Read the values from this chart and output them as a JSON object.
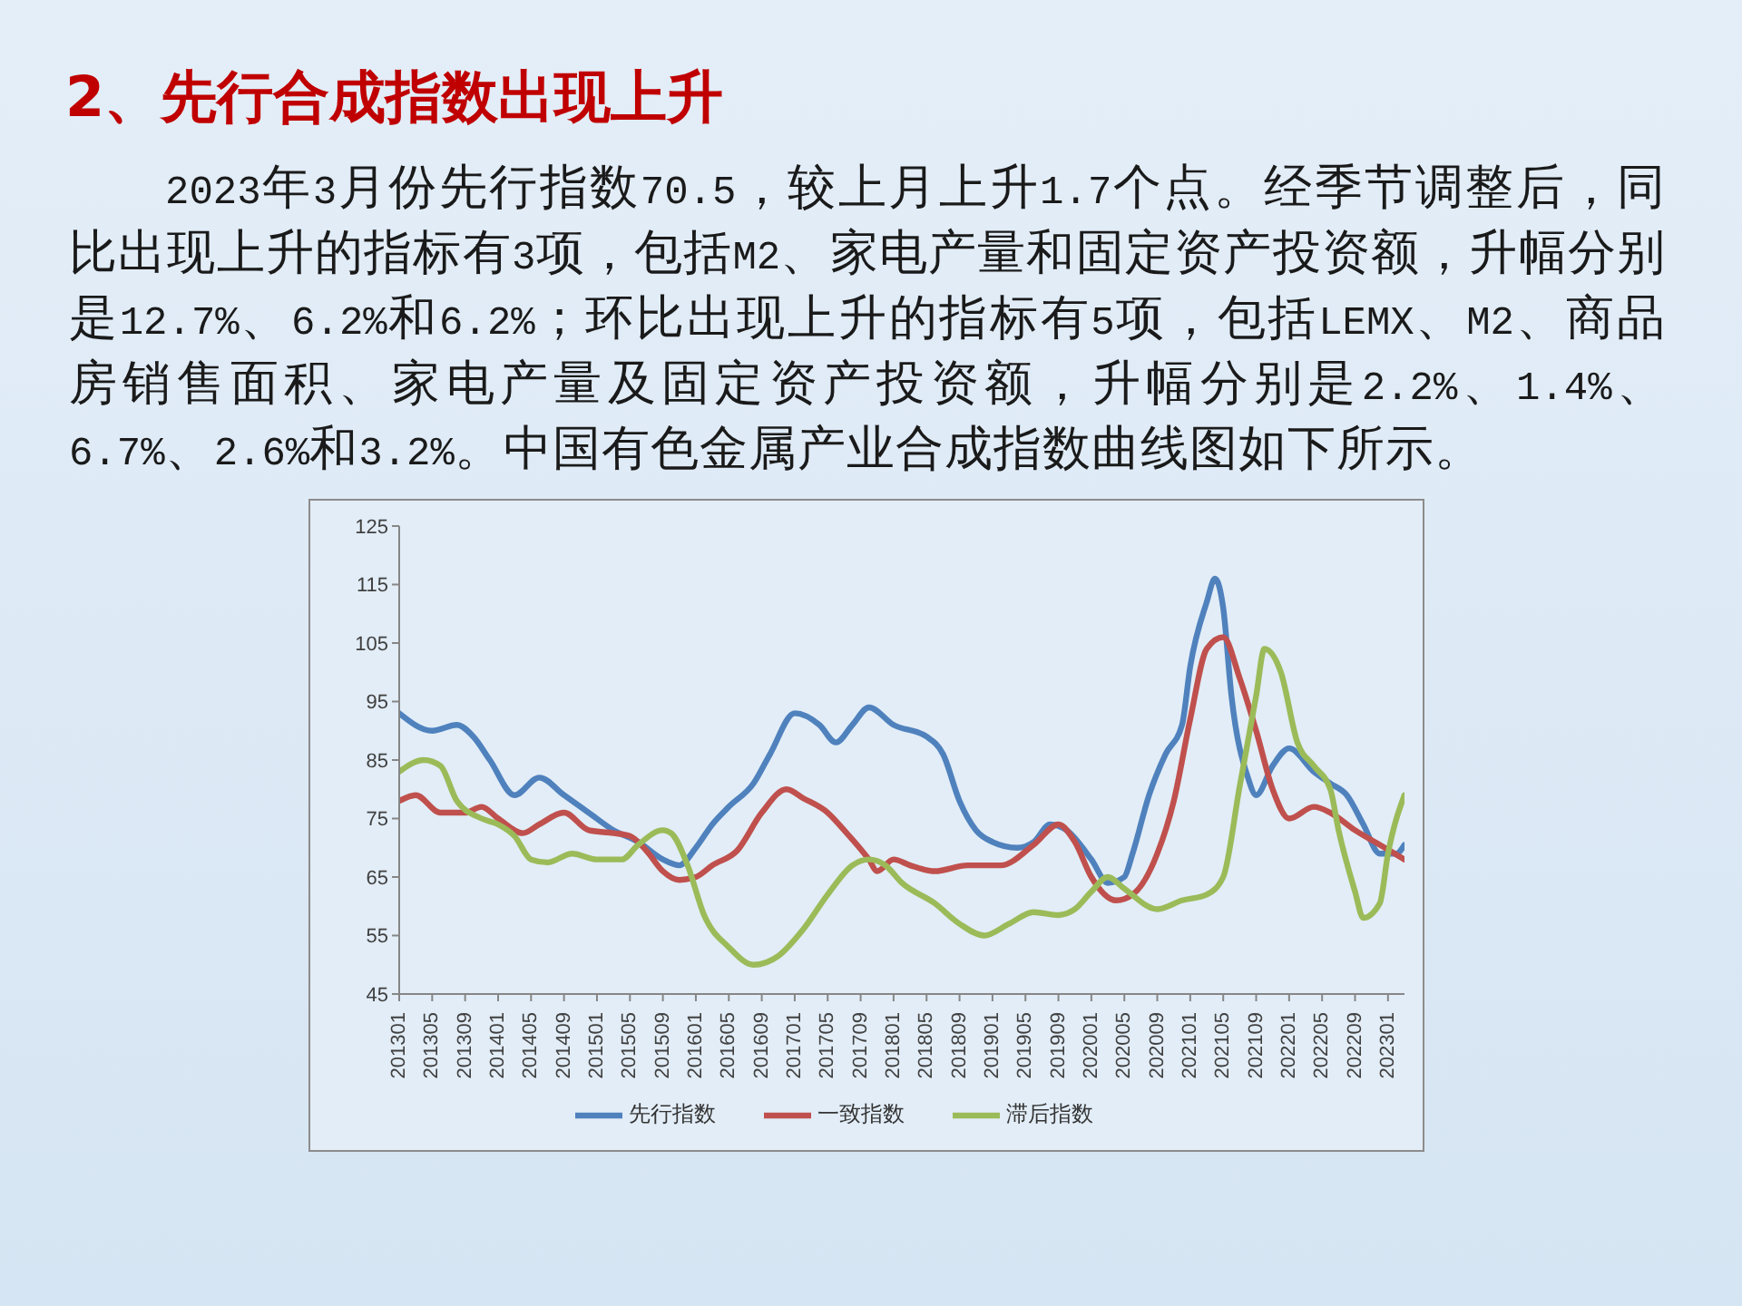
{
  "chart_data": {
    "type": "line",
    "title": "2、先行合成指数出现上升",
    "subtitle": "2023年3月份先行指数70.5，较上月上升1.7个点。经季节调整后，同比出现上升的指标有3项，包括M2、家电产量和固定资产投资额，升幅分别是12.7%、6.2%和6.2%；环比出现上升的指标有5项，包括LEMX、M2、商品房销售面积、家电产量及固定资产投资额，升幅分别是2.2%、1.4%、6.7%、2.6%和3.2%。中国有色金属产业合成指数曲线图如下所示。",
    "xlim": [
      "2013-01",
      "2023-03"
    ],
    "xticks": [
      {
        "value": "2013-01",
        "label": "201301"
      },
      {
        "value": "2013-05",
        "label": "201305"
      },
      {
        "value": "2013-09",
        "label": "201309"
      },
      {
        "value": "2014-01",
        "label": "201401"
      },
      {
        "value": "2014-05",
        "label": "201405"
      },
      {
        "value": "2014-09",
        "label": "201409"
      },
      {
        "value": "2015-01",
        "label": "201501"
      },
      {
        "value": "2015-05",
        "label": "201505"
      },
      {
        "value": "2015-09",
        "label": "201509"
      },
      {
        "value": "2016-01",
        "label": "201601"
      },
      {
        "value": "2016-05",
        "label": "201605"
      },
      {
        "value": "2016-09",
        "label": "201609"
      },
      {
        "value": "2017-01",
        "label": "201701"
      },
      {
        "value": "2017-05",
        "label": "201705"
      },
      {
        "value": "2017-09",
        "label": "201709"
      },
      {
        "value": "2018-01",
        "label": "201801"
      },
      {
        "value": "2018-05",
        "label": "201805"
      },
      {
        "value": "2018-09",
        "label": "201809"
      },
      {
        "value": "2019-01",
        "label": "201901"
      },
      {
        "value": "2019-05",
        "label": "201905"
      },
      {
        "value": "2019-09",
        "label": "201909"
      },
      {
        "value": "2020-01",
        "label": "202001"
      },
      {
        "value": "2020-05",
        "label": "202005"
      },
      {
        "value": "2020-09",
        "label": "202009"
      },
      {
        "value": "2021-01",
        "label": "202101"
      },
      {
        "value": "2021-05",
        "label": "202105"
      },
      {
        "value": "2021-09",
        "label": "202109"
      },
      {
        "value": "2022-01",
        "label": "202201"
      },
      {
        "value": "2022-05",
        "label": "202205"
      },
      {
        "value": "2022-09",
        "label": "202209"
      },
      {
        "value": "2023-01",
        "label": "202301"
      }
    ],
    "ylim": [
      45,
      125
    ],
    "yticks": [
      45,
      55,
      65,
      75,
      85,
      95,
      105,
      115,
      125
    ],
    "legend": "bottom",
    "series": [
      {
        "name": "先行指数",
        "color": "#4f81bd",
        "x": [
          "2013-01",
          "2013-05",
          "2013-08",
          "2013-10",
          "2013-12",
          "2014-03",
          "2014-06",
          "2014-09",
          "2014-12",
          "2015-03",
          "2015-06",
          "2015-09",
          "2015-11",
          "2016-01",
          "2016-03",
          "2016-05",
          "2016-08",
          "2016-10",
          "2017-01",
          "2017-04",
          "2017-06",
          "2017-08",
          "2017-10",
          "2018-01",
          "2018-05",
          "2018-07",
          "2018-09",
          "2018-11",
          "2019-01",
          "2019-04",
          "2019-06",
          "2019-08",
          "2019-10",
          "2020-01",
          "2020-03",
          "2020-05",
          "2020-06",
          "2020-08",
          "2020-10",
          "2020-12",
          "2021-01",
          "2021-03",
          "2021-04",
          "2021-05",
          "2021-06",
          "2021-08",
          "2021-09",
          "2021-11",
          "2022-01",
          "2022-04",
          "2022-06",
          "2022-08",
          "2022-10",
          "2022-12",
          "2023-02",
          "2023-03"
        ],
        "values": [
          93,
          90,
          91,
          89,
          85,
          79,
          82,
          79,
          76,
          73,
          71,
          68,
          67,
          70,
          74,
          77,
          81,
          86,
          93,
          91,
          88,
          91,
          94,
          91,
          89,
          86,
          78,
          73,
          71,
          70,
          71,
          74,
          73,
          68,
          64,
          65,
          69,
          79,
          86,
          91,
          101,
          112,
          116,
          111,
          96,
          82,
          79,
          84,
          87,
          83,
          81,
          79,
          74,
          69,
          69,
          70.5
        ]
      },
      {
        "name": "一致指数",
        "color": "#c0504d",
        "x": [
          "2013-01",
          "2013-03",
          "2013-06",
          "2013-09",
          "2013-11",
          "2014-01",
          "2014-04",
          "2014-06",
          "2014-09",
          "2014-12",
          "2015-03",
          "2015-05",
          "2015-07",
          "2015-09",
          "2015-11",
          "2016-01",
          "2016-03",
          "2016-06",
          "2016-09",
          "2016-12",
          "2017-02",
          "2017-05",
          "2017-07",
          "2017-10",
          "2017-11",
          "2018-01",
          "2018-03",
          "2018-06",
          "2018-10",
          "2019-02",
          "2019-06",
          "2019-09",
          "2019-11",
          "2020-01",
          "2020-04",
          "2020-06",
          "2020-09",
          "2020-11",
          "2021-01",
          "2021-03",
          "2021-05",
          "2021-07",
          "2021-09",
          "2021-11",
          "2022-01",
          "2022-04",
          "2022-06",
          "2022-09",
          "2022-12",
          "2023-03"
        ],
        "values": [
          78,
          79,
          76,
          76,
          77,
          75,
          72.5,
          74,
          76,
          73,
          72.5,
          72,
          69.5,
          66,
          64.5,
          65,
          67,
          69.5,
          76,
          80,
          78.5,
          76,
          73,
          68,
          66,
          68,
          67,
          66,
          67,
          67,
          70.5,
          74,
          71,
          65,
          61,
          62,
          69,
          78,
          92,
          104,
          106,
          99,
          90,
          80,
          75,
          77,
          76,
          73,
          70.5,
          68
        ]
      },
      {
        "name": "滞后指数",
        "color": "#9bbb59",
        "x": [
          "2013-01",
          "2013-04",
          "2013-06",
          "2013-08",
          "2013-11",
          "2014-01",
          "2014-03",
          "2014-05",
          "2014-07",
          "2014-10",
          "2015-01",
          "2015-04",
          "2015-06",
          "2015-09",
          "2015-10",
          "2015-12",
          "2016-02",
          "2016-05",
          "2016-08",
          "2016-11",
          "2017-02",
          "2017-05",
          "2017-08",
          "2017-10",
          "2017-12",
          "2018-02",
          "2018-06",
          "2018-09",
          "2018-12",
          "2019-03",
          "2019-06",
          "2019-09",
          "2019-11",
          "2020-01",
          "2020-03",
          "2020-05",
          "2020-09",
          "2020-12",
          "2021-03",
          "2021-05",
          "2021-07",
          "2021-09",
          "2021-10",
          "2021-12",
          "2022-02",
          "2022-04",
          "2022-06",
          "2022-07",
          "2022-09",
          "2022-10",
          "2022-12",
          "2023-01",
          "2023-03"
        ],
        "values": [
          83,
          85,
          84,
          78,
          75,
          74,
          72,
          68,
          67.5,
          69,
          68,
          68,
          70.5,
          73,
          72.5,
          67,
          58.5,
          53,
          50,
          51.5,
          56,
          62,
          67,
          68,
          67,
          64,
          60.5,
          57,
          55,
          57,
          59,
          58.5,
          59.5,
          62.5,
          65,
          63,
          59.5,
          61,
          62,
          65,
          80.5,
          96,
          104,
          100,
          88,
          84,
          80,
          73,
          62.5,
          58,
          60.5,
          69,
          79
        ]
      }
    ]
  }
}
